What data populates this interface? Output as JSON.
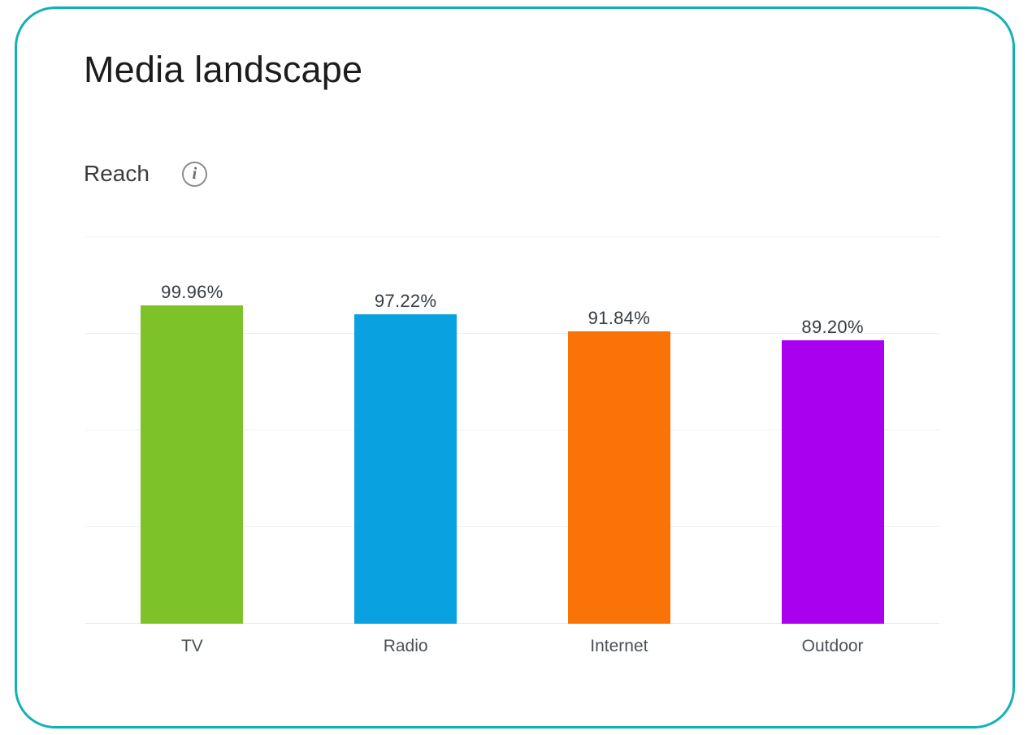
{
  "header": {
    "title": "Media landscape",
    "metric_label": "Reach",
    "info_glyph": "i"
  },
  "card": {
    "border_color": "#12b1b8",
    "background": "#ffffff"
  },
  "chart_data": {
    "type": "bar",
    "title": "Reach",
    "categories": [
      "TV",
      "Radio",
      "Internet",
      "Outdoor"
    ],
    "values": [
      99.96,
      97.22,
      91.84,
      89.2
    ],
    "value_labels": [
      "99.96%",
      "97.22%",
      "91.84%",
      "89.20%"
    ],
    "colors": [
      "#7dc228",
      "#09a1e0",
      "#f97306",
      "#aa00f0"
    ],
    "xlabel": "",
    "ylabel": "",
    "ylim": [
      0,
      121.5
    ],
    "gridline_count": 5,
    "grid_color": "#eef1f5",
    "grid": "on",
    "legend": "none",
    "value_label_color": "#363c42",
    "category_label_color": "#4b5157"
  }
}
